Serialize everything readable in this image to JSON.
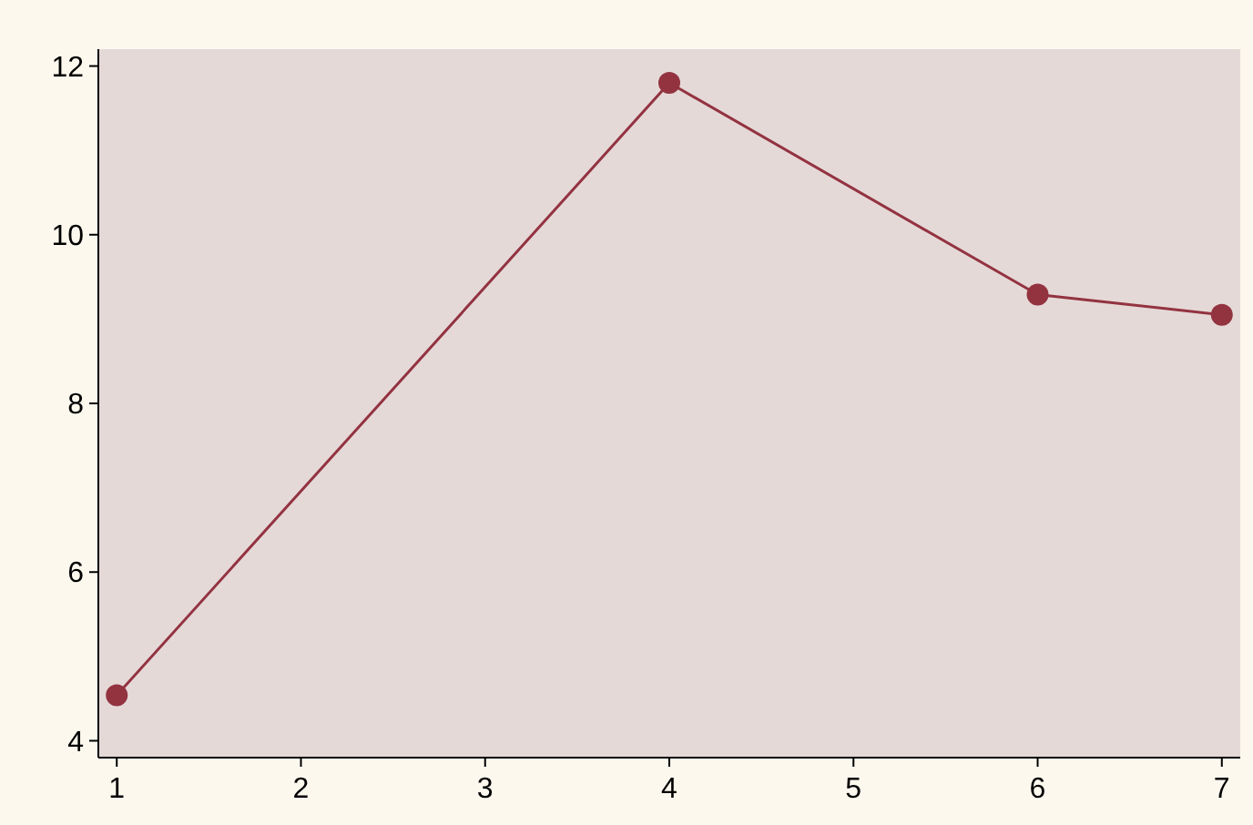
{
  "chart_data": {
    "type": "line",
    "x": [
      1,
      4,
      6,
      7
    ],
    "series": [
      {
        "color": "#933340",
        "values": [
          4.54,
          11.8,
          9.29,
          9.05
        ]
      }
    ],
    "xlim": [
      0.9,
      7.1
    ],
    "ylim": [
      3.8,
      12.2
    ],
    "xticks": [
      1,
      2,
      3,
      4,
      5,
      6,
      7
    ],
    "yticks": [
      4,
      6,
      8,
      10,
      12
    ],
    "marker": "circle",
    "line_style": "solid"
  }
}
